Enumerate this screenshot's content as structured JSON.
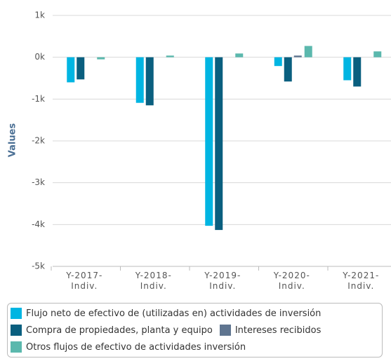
{
  "chart_data": {
    "type": "bar",
    "y_label": "Values",
    "categories": [
      "Y-2017-Indiv.",
      "Y-2018-Indiv.",
      "Y-2019-Indiv.",
      "Y-2020-Indiv.",
      "Y-2021-Indiv."
    ],
    "series": [
      {
        "name": "Flujo neto de efectivo de (utilizadas en) actividades de inversión",
        "color": "#00b5e2",
        "values": [
          -600,
          -1090,
          -4030,
          -210,
          -550
        ]
      },
      {
        "name": "Compra de propiedades, planta y equipo",
        "color": "#0a5f7f",
        "values": [
          -530,
          -1150,
          -4130,
          -580,
          -700
        ]
      },
      {
        "name": "Intereses recibidos",
        "color": "#5f7590",
        "values": [
          null,
          null,
          null,
          40,
          null
        ]
      },
      {
        "name": "Otros flujos de efectivo de actividades inversión",
        "color": "#5bb8ad",
        "values": [
          -50,
          40,
          90,
          270,
          140
        ]
      }
    ],
    "ylim": [
      -5000,
      1000
    ],
    "yticks": [
      {
        "value": 1000,
        "label": "1k"
      },
      {
        "value": 0,
        "label": "0k"
      },
      {
        "value": -1000,
        "label": "-1k"
      },
      {
        "value": -2000,
        "label": "-2k"
      },
      {
        "value": -3000,
        "label": "-3k"
      },
      {
        "value": -4000,
        "label": "-4k"
      },
      {
        "value": -5000,
        "label": "-5k"
      }
    ],
    "grid": true
  }
}
